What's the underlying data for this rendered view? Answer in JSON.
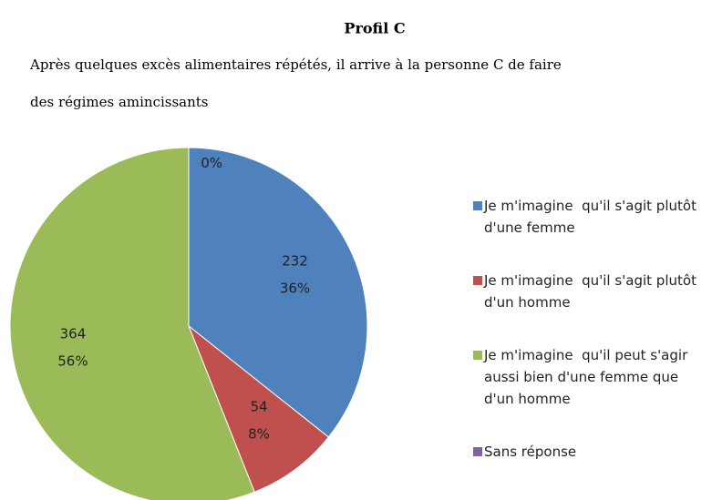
{
  "chart_data": {
    "type": "pie",
    "title": "Profil C",
    "subtitle": [
      "Après quelques excès alimentaires répétés, il arrive à la personne C de faire",
      "des régimes amincissants"
    ],
    "categories": [
      "Je m'imagine  qu'il s'agit plutôt d'une femme",
      "Je m'imagine  qu'il s'agit plutôt d'un homme",
      "Je m'imagine  qu'il peut s'agir aussi bien d'une femme que d'un homme",
      "Sans réponse"
    ],
    "values": [
      232,
      54,
      364,
      0
    ],
    "percentages": [
      36,
      8,
      56,
      0
    ],
    "percentage_labels": [
      "36%",
      "8%",
      "56%",
      "0%"
    ],
    "colors": [
      "#4f81bd",
      "#c0504d",
      "#9bbb59",
      "#8064a2"
    ],
    "legend": "right"
  }
}
